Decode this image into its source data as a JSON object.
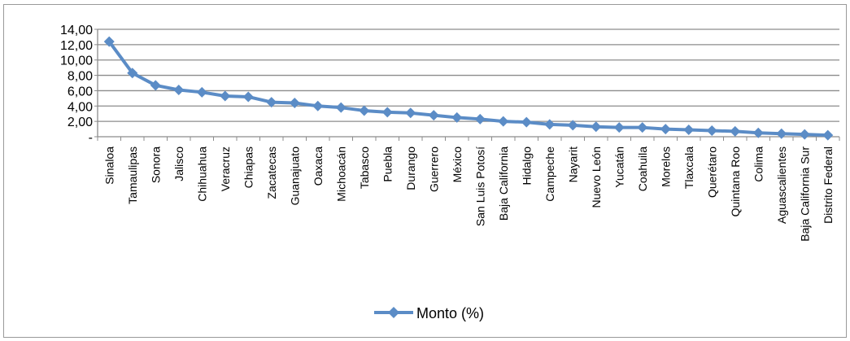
{
  "chart_data": {
    "type": "line",
    "categories": [
      "Sinaloa",
      "Tamaulipas",
      "Sonora",
      "Jalisco",
      "Chihuahua",
      "Veracruz",
      "Chiapas",
      "Zacatecas",
      "Guanajuato",
      "Oaxaca",
      "Michoacán",
      "Tabasco",
      "Puebla",
      "Durango",
      "Guerrero",
      "México",
      "San Luis Potosí",
      "Baja California",
      "Hidalgo",
      "Campeche",
      "Nayarit",
      "Nuevo León",
      "Yucatán",
      "Coahuila",
      "Morelos",
      "Tlaxcala",
      "Querétaro",
      "Quintana Roo",
      "Colima",
      "Aguascalientes",
      "Baja California Sur",
      "Distrito Federal"
    ],
    "series": [
      {
        "name": "Monto (%)",
        "values": [
          12.4,
          8.3,
          6.7,
          6.1,
          5.8,
          5.3,
          5.2,
          4.5,
          4.4,
          4.0,
          3.8,
          3.4,
          3.2,
          3.1,
          2.8,
          2.5,
          2.3,
          2.0,
          1.9,
          1.6,
          1.5,
          1.3,
          1.2,
          1.2,
          1.0,
          0.9,
          0.8,
          0.7,
          0.5,
          0.4,
          0.3,
          0.2
        ]
      }
    ],
    "ylim": [
      0,
      14
    ],
    "yticks": [
      "-",
      "2,00",
      "4,00",
      "6,00",
      "8,00",
      "10,00",
      "12,00",
      "14,00"
    ],
    "grid": true,
    "legend_position": "bottom",
    "line_color": "#5b8cc6"
  }
}
